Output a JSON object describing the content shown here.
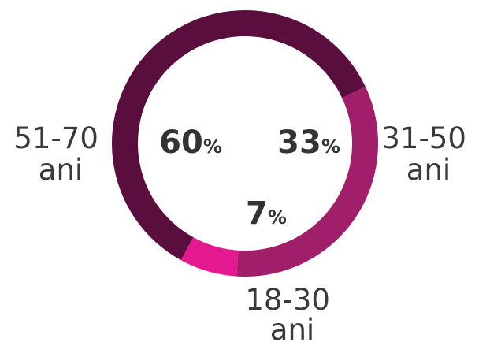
{
  "chart_data": {
    "type": "pie",
    "donut": true,
    "categories": [
      "31-50 ani",
      "18-30 ani",
      "51-70 ani"
    ],
    "values": [
      33,
      7,
      60
    ],
    "unit": "%",
    "colors": [
      "#a01e6a",
      "#e5198f",
      "#5a0e3d"
    ],
    "labels": [
      {
        "line1": "31-50",
        "line2": "ani"
      },
      {
        "line1": "18-30",
        "line2": "ani"
      },
      {
        "line1": "51-70",
        "line2": "ani"
      }
    ],
    "value_labels": [
      {
        "number": "33",
        "symbol": "%"
      },
      {
        "number": "7",
        "symbol": "%"
      },
      {
        "number": "60",
        "symbol": "%"
      }
    ]
  }
}
